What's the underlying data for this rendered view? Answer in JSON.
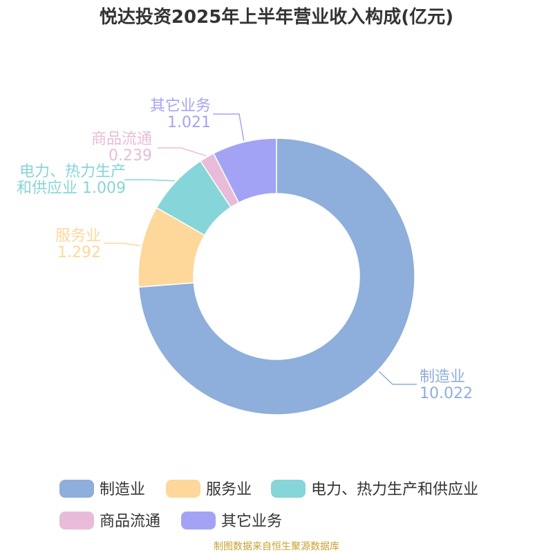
{
  "chart_data": {
    "type": "pie",
    "title": "悦达投资2025年上半年营业收入构成(亿元)",
    "categories": [
      "制造业",
      "服务业",
      "电力、热力生产和供应业",
      "商品流通",
      "其它业务"
    ],
    "values": [
      10.022,
      1.292,
      1.009,
      0.239,
      1.021
    ],
    "value_labels": [
      "10.022",
      "1.292",
      "1.009",
      "0.239",
      "1.021"
    ],
    "label_lines": [
      [
        "制造业"
      ],
      [
        "服务业"
      ],
      [
        "电力、热力生产",
        "和供应业"
      ],
      [
        "商品流通"
      ],
      [
        "其它业务"
      ]
    ],
    "colors": [
      "#8eaedb",
      "#fdd89a",
      "#86d5d8",
      "#e8bcd8",
      "#a3a3f5"
    ],
    "donut": true,
    "legend_position": "bottom"
  },
  "source": "制图数据来自恒生聚源数据库"
}
